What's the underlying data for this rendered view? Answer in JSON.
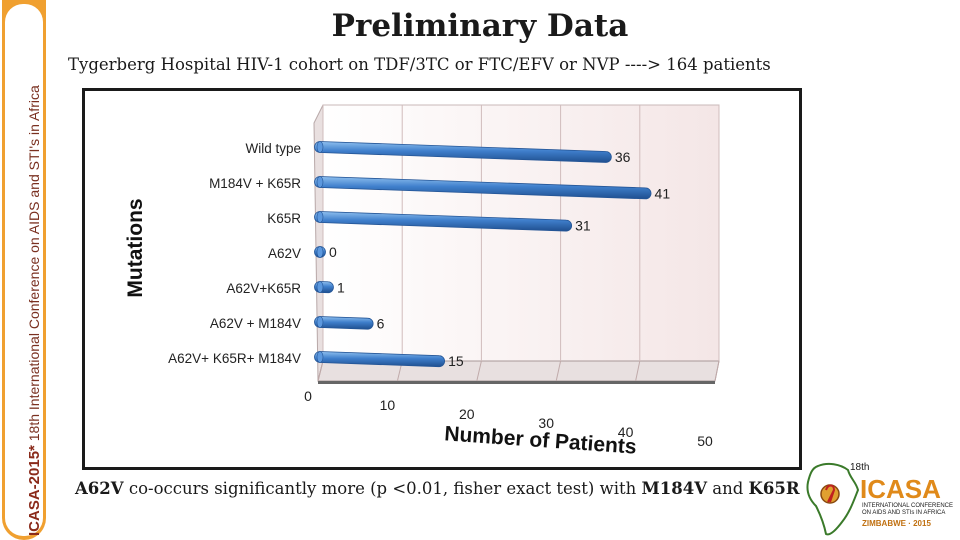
{
  "side_banner": {
    "strong": "ICASA-2015*",
    "rest": " 18th International Conference on AIDS and STI's in Africa"
  },
  "title": "Preliminary Data",
  "subtitle": "Tygerberg Hospital HIV-1 cohort on TDF/3TC or FTC/EFV or NVP ----> 164 patients",
  "chart_data": {
    "type": "bar",
    "orientation": "horizontal",
    "categories": [
      "Wild type",
      "M184V + K65R",
      "K65R",
      "A62V",
      "A62V+K65R",
      "A62V + M184V",
      "A62V+ K65R+ M184V"
    ],
    "values": [
      36,
      41,
      31,
      0,
      1,
      6,
      15
    ],
    "xlabel": "Number of Patients",
    "ylabel": "Mutations",
    "xlim": [
      0,
      50
    ],
    "xticks": [
      0,
      10,
      20,
      30,
      40,
      50
    ],
    "grid": true,
    "bar_color": "#3a78c4"
  },
  "footnote": {
    "a62v": "A62V",
    "middle": " co-occurs significantly more (p <0.01, fisher exact test) with ",
    "m184v": "M184V",
    "and": " and ",
    "k65r": "K65R"
  },
  "logo": {
    "num": "18th",
    "name": "ICASA",
    "line1": "INTERNATIONAL CONFERENCE",
    "line2": "ON AIDS AND STIs IN AFRICA",
    "line3": "ZIMBABWE · 2015"
  }
}
